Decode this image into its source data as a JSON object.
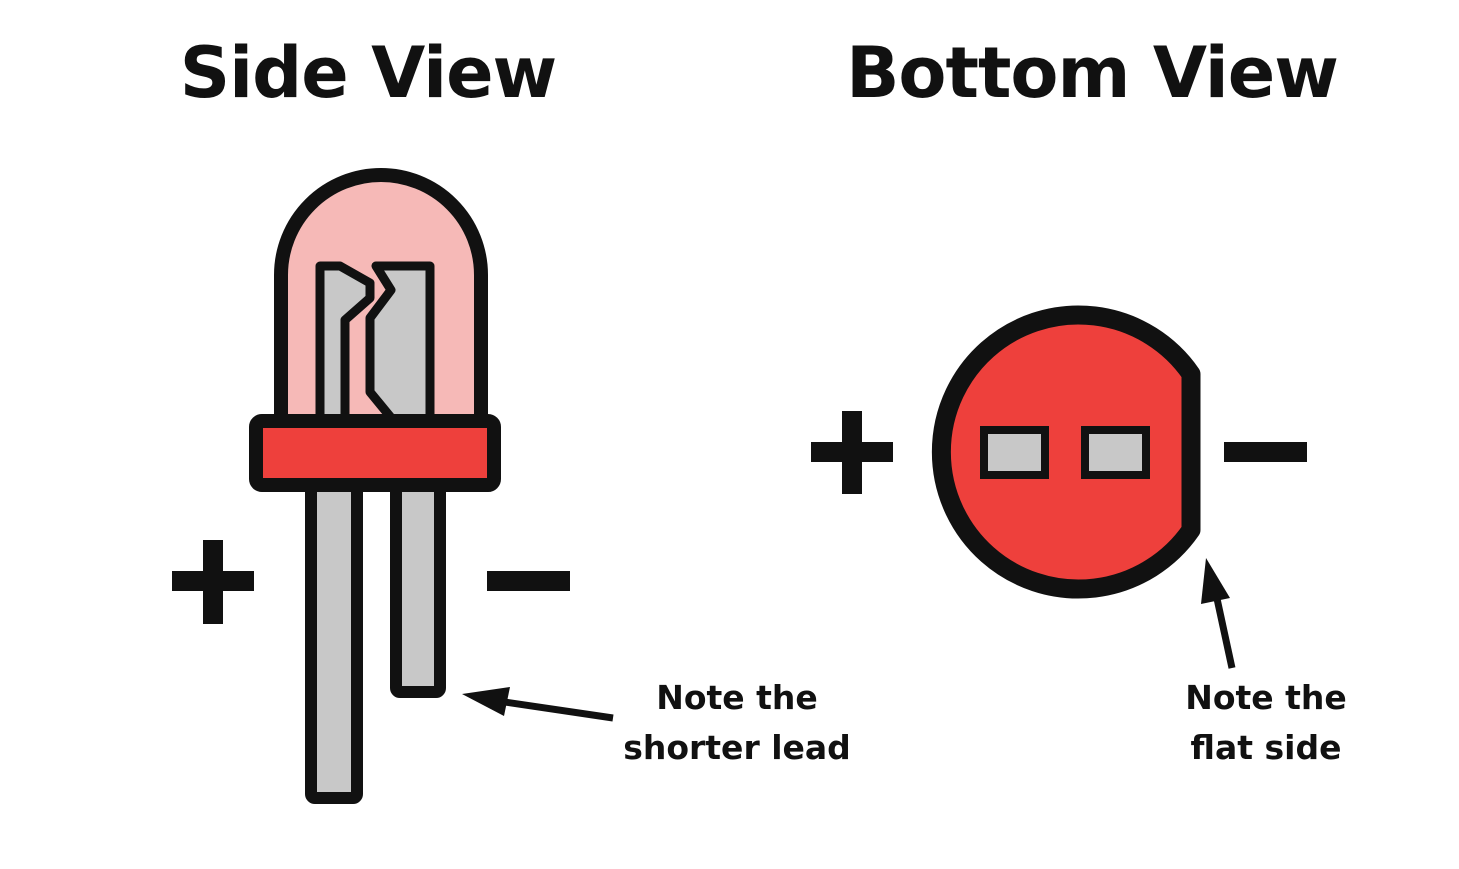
{
  "titles": {
    "side": "Side View",
    "bottom": "Bottom View"
  },
  "side_view": {
    "anode_symbol": "+",
    "cathode_symbol": "–",
    "note_line1": "Note the",
    "note_line2": "shorter lead"
  },
  "bottom_view": {
    "anode_symbol": "+",
    "cathode_symbol": "–",
    "note_line1": "Note the",
    "note_line2": "flat side"
  },
  "colors": {
    "outline": "#111111",
    "lens_tint": "#f6b9b7",
    "led_red": "#ee403c",
    "lead_gray": "#c8c8c8",
    "background": "#ffffff"
  }
}
